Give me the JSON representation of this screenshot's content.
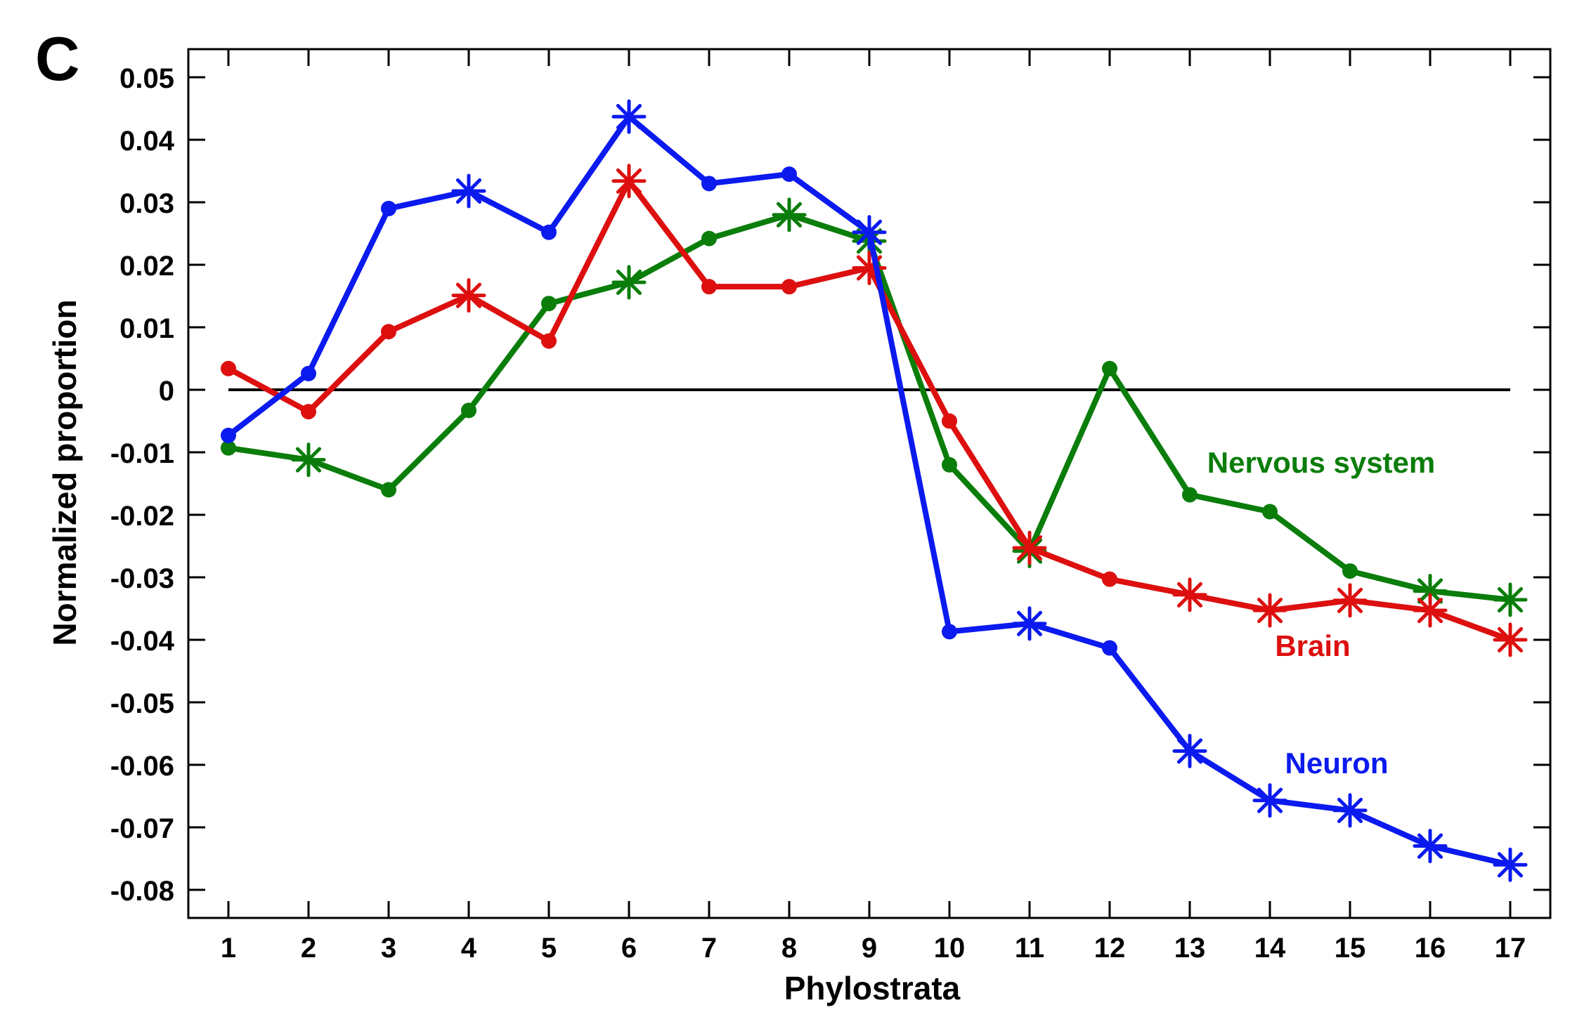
{
  "panel_label": "C",
  "chart_data": {
    "type": "line",
    "title": "",
    "xlabel": "Phylostrata",
    "ylabel": "Normalized proportion",
    "x": [
      1,
      2,
      3,
      4,
      5,
      6,
      7,
      8,
      9,
      10,
      11,
      12,
      13,
      14,
      15,
      16,
      17
    ],
    "xlim": [
      0.5,
      17.5
    ],
    "ylim": [
      -0.0845,
      0.0545
    ],
    "yticks": [
      0.05,
      0.04,
      0.03,
      0.02,
      0.01,
      0,
      -0.01,
      -0.02,
      -0.03,
      -0.04,
      -0.05,
      -0.06,
      -0.07,
      -0.08
    ],
    "ytick_labels": [
      "0.05",
      "0.04",
      "0.03",
      "0.02",
      "0.01",
      "0",
      "-0.01",
      "-0.02",
      "-0.03",
      "-0.04",
      "-0.05",
      "-0.06",
      "-0.07",
      "-0.08"
    ],
    "xtick_labels": [
      "1",
      "2",
      "3",
      "4",
      "5",
      "6",
      "7",
      "8",
      "9",
      "10",
      "11",
      "12",
      "13",
      "14",
      "15",
      "16",
      "17"
    ],
    "reference_line": 0,
    "grid": false,
    "series": [
      {
        "name": "Nervous system",
        "color": "#0a7d0a",
        "values": [
          -0.0093,
          -0.0112,
          -0.016,
          -0.0033,
          0.0138,
          0.0172,
          0.0242,
          0.028,
          0.0238,
          -0.012,
          -0.0258,
          0.0034,
          -0.0168,
          -0.0195,
          -0.029,
          -0.0322,
          -0.0336
        ],
        "significant": [
          false,
          true,
          false,
          false,
          false,
          true,
          false,
          true,
          true,
          false,
          true,
          false,
          false,
          false,
          false,
          true,
          true
        ]
      },
      {
        "name": "Brain",
        "color": "#dd0f0f",
        "values": [
          0.0034,
          -0.0035,
          0.0093,
          0.0151,
          0.0078,
          0.0334,
          0.0165,
          0.0165,
          0.0195,
          -0.005,
          -0.0253,
          -0.0303,
          -0.0328,
          -0.0353,
          -0.0337,
          -0.0353,
          -0.04
        ],
        "significant": [
          false,
          false,
          false,
          true,
          false,
          true,
          false,
          false,
          true,
          false,
          true,
          false,
          true,
          true,
          true,
          true,
          true
        ]
      },
      {
        "name": "Neuron",
        "color": "#0b1aee",
        "values": [
          -0.0073,
          0.0026,
          0.029,
          0.0318,
          0.0252,
          0.0437,
          0.033,
          0.0345,
          0.0252,
          -0.0387,
          -0.0374,
          -0.0413,
          -0.0578,
          -0.0657,
          -0.0673,
          -0.073,
          -0.076
        ],
        "significant": [
          false,
          false,
          false,
          true,
          false,
          true,
          false,
          false,
          true,
          false,
          true,
          false,
          true,
          true,
          true,
          true,
          true
        ]
      }
    ]
  }
}
